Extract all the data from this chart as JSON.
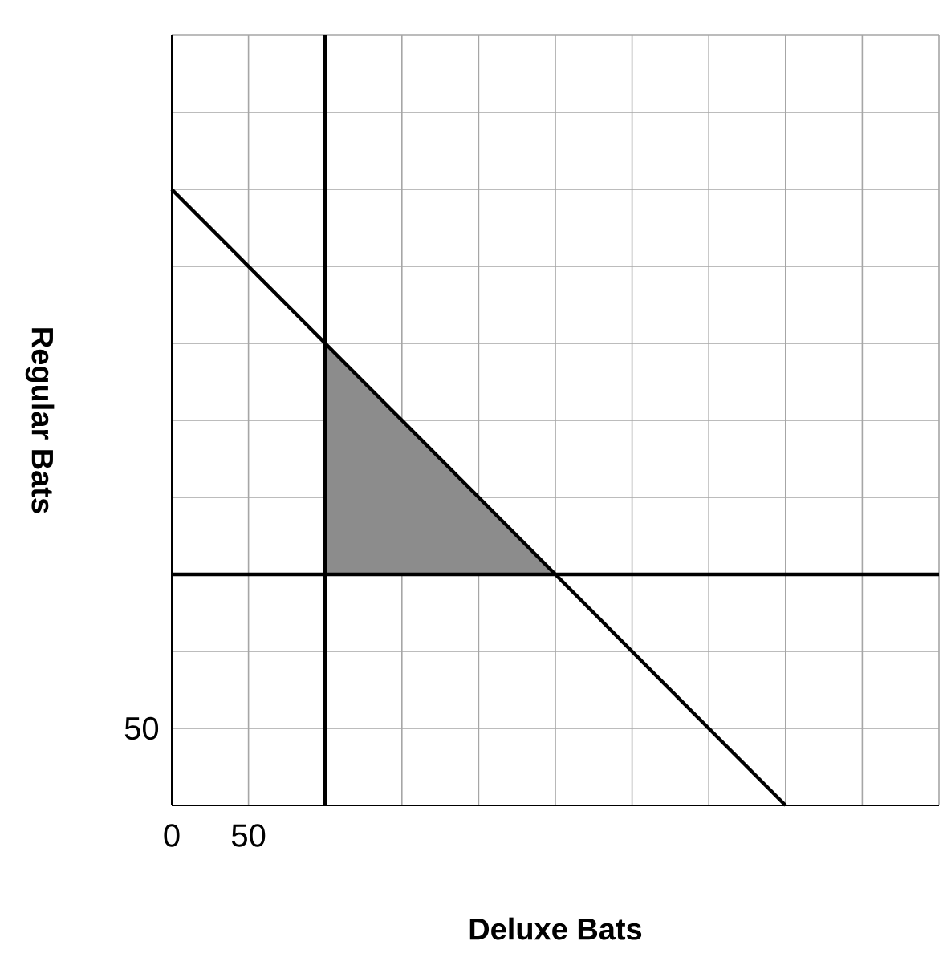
{
  "chart_data": {
    "type": "line",
    "xlabel": "Deluxe Bats",
    "ylabel": "Regular Bats",
    "xlim": [
      0,
      500
    ],
    "ylim": [
      0,
      500
    ],
    "xticks": [
      {
        "value": 0,
        "label": "0"
      },
      {
        "value": 50,
        "label": "50"
      },
      {
        "value": 100,
        "label": null
      },
      {
        "value": 150,
        "label": null
      },
      {
        "value": 200,
        "label": null
      },
      {
        "value": 250,
        "label": null
      },
      {
        "value": 300,
        "label": null
      },
      {
        "value": 350,
        "label": null
      },
      {
        "value": 400,
        "label": null
      },
      {
        "value": 450,
        "label": null
      },
      {
        "value": 500,
        "label": null
      }
    ],
    "yticks": [
      {
        "value": 0,
        "label": null
      },
      {
        "value": 50,
        "label": "50"
      },
      {
        "value": 100,
        "label": null
      },
      {
        "value": 150,
        "label": null
      },
      {
        "value": 200,
        "label": null
      },
      {
        "value": 250,
        "label": null
      },
      {
        "value": 300,
        "label": null
      },
      {
        "value": 350,
        "label": null
      },
      {
        "value": 400,
        "label": null
      },
      {
        "value": 450,
        "label": null
      },
      {
        "value": 500,
        "label": null
      }
    ],
    "grid": true,
    "marker": "none",
    "line_style": "solid",
    "series": [
      {
        "type": "area",
        "color": "#8c8c8c",
        "x": [
          100,
          100,
          250,
          100
        ],
        "values": [
          300,
          150,
          150,
          300
        ]
      },
      {
        "type": "line",
        "color": "#000000",
        "x": [
          0,
          400
        ],
        "values": [
          400,
          0
        ]
      },
      {
        "color": "#000000",
        "x": [
          100,
          100
        ],
        "values": [
          0,
          500
        ]
      },
      {
        "color": "#000000",
        "x": [
          0,
          500
        ],
        "values": [
          150,
          150
        ]
      }
    ]
  }
}
